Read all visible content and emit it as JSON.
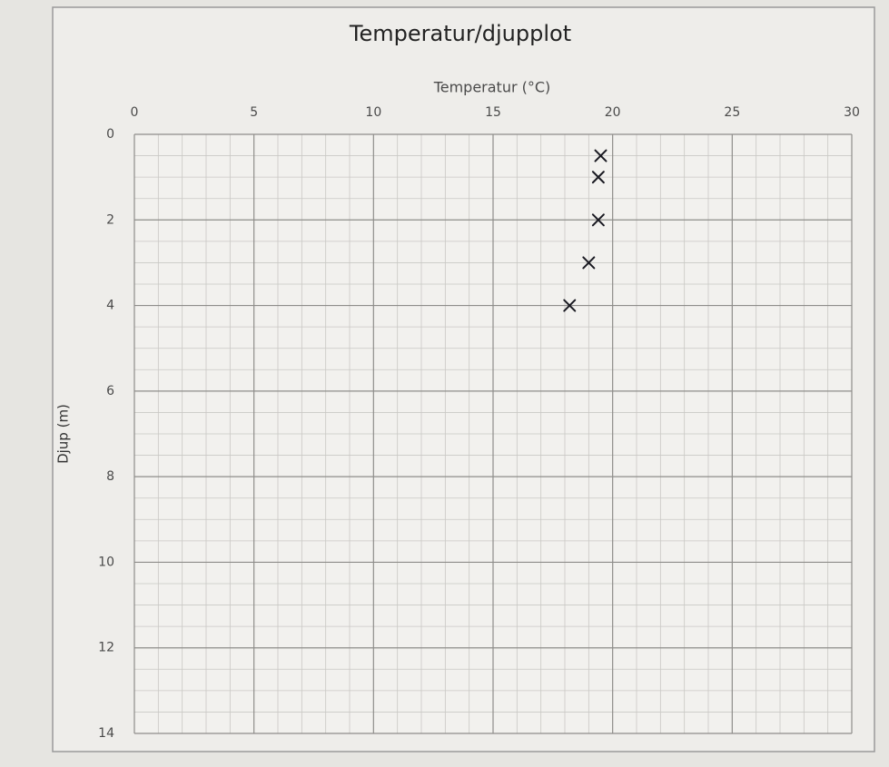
{
  "chart_data": {
    "type": "scatter",
    "title": "Temperatur/djupplot",
    "x_label": "Temperatur (°C)",
    "y_label": "Djup (m)",
    "x": [
      19.5,
      19.4,
      19.4,
      19.0,
      18.2
    ],
    "values": [
      0.5,
      1.0,
      2.0,
      3.0,
      4.0
    ],
    "color": "#1a1a22",
    "marker": "x",
    "xlim": [
      0,
      30
    ],
    "xticks": [
      0,
      5,
      10,
      15,
      20,
      25,
      30
    ],
    "ylim": [
      0,
      14
    ],
    "yticks": [
      0,
      2,
      4,
      6,
      8,
      10,
      12,
      14
    ],
    "y_inverted": true,
    "x_axis_position": "top",
    "grid": true,
    "xminorticks": [
      1,
      2,
      3,
      4,
      6,
      7,
      8,
      9,
      11,
      12,
      13,
      14,
      16,
      17,
      18,
      19,
      21,
      22,
      23,
      24,
      26,
      27,
      28,
      29
    ],
    "yminorticks": [
      0.5,
      1,
      1.5,
      2.5,
      3,
      3.5,
      4.5,
      5,
      5.5,
      6.5,
      7,
      7.5,
      8.5,
      9,
      9.5,
      10.5,
      11,
      11.5,
      12.5,
      13,
      13.5
    ]
  }
}
